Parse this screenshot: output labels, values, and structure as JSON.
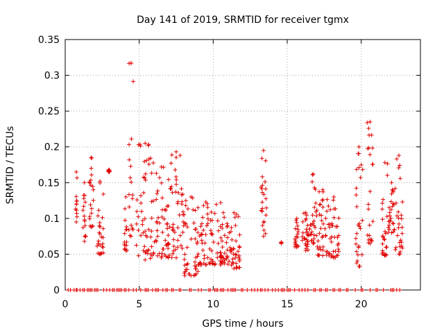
{
  "chart_data": {
    "type": "scatter",
    "title": "Day 141 of 2019, SRMTID for receiver tgmx",
    "xlabel": "GPS time / hours",
    "ylabel": "SRMTID / TECUs",
    "xlim": [
      0,
      24
    ],
    "ylim": [
      0,
      0.35
    ],
    "x_ticks": [
      0,
      5,
      10,
      15,
      20
    ],
    "y_ticks": [
      0,
      0.05,
      0.1,
      0.15,
      0.2,
      0.25,
      0.3,
      0.35
    ],
    "grid": true,
    "marker": "plus",
    "series_color": "#e00000",
    "series": [
      {
        "name": "SRMTID",
        "clusters": [
          {
            "x_from": 0.7,
            "x_to": 0.8,
            "y_min": 0.095,
            "y_max": 0.165
          },
          {
            "x_from": 1.2,
            "x_to": 1.4,
            "y_min": 0.068,
            "y_max": 0.15
          },
          {
            "x_from": 1.6,
            "x_to": 1.9,
            "y_min": 0.088,
            "y_max": 0.185
          },
          {
            "x_from": 2.1,
            "x_to": 2.6,
            "y_min": 0.05,
            "y_max": 0.152
          },
          {
            "x_from": 2.9,
            "x_to": 3.0,
            "y_min": 0.165,
            "y_max": 0.168
          },
          {
            "x_from": 4.0,
            "x_to": 4.2,
            "y_min": 0.055,
            "y_max": 0.13
          },
          {
            "x_from": 4.3,
            "x_to": 4.6,
            "y_min": 0.075,
            "y_max": 0.317
          },
          {
            "x_from": 4.8,
            "x_to": 6.0,
            "y_min": 0.042,
            "y_max": 0.205
          },
          {
            "x_from": 6.0,
            "x_to": 7.0,
            "y_min": 0.045,
            "y_max": 0.172
          },
          {
            "x_from": 7.0,
            "x_to": 8.0,
            "y_min": 0.045,
            "y_max": 0.193
          },
          {
            "x_from": 8.0,
            "x_to": 9.0,
            "y_min": 0.02,
            "y_max": 0.13
          },
          {
            "x_from": 9.0,
            "x_to": 10.0,
            "y_min": 0.035,
            "y_max": 0.123
          },
          {
            "x_from": 10.0,
            "x_to": 11.0,
            "y_min": 0.035,
            "y_max": 0.122
          },
          {
            "x_from": 11.0,
            "x_to": 11.8,
            "y_min": 0.03,
            "y_max": 0.108
          },
          {
            "x_from": 13.2,
            "x_to": 13.6,
            "y_min": 0.075,
            "y_max": 0.195
          },
          {
            "x_from": 14.6,
            "x_to": 14.6,
            "y_min": 0.065,
            "y_max": 0.067
          },
          {
            "x_from": 15.5,
            "x_to": 15.8,
            "y_min": 0.06,
            "y_max": 0.1
          },
          {
            "x_from": 16.0,
            "x_to": 16.5,
            "y_min": 0.055,
            "y_max": 0.108
          },
          {
            "x_from": 16.5,
            "x_to": 17.0,
            "y_min": 0.065,
            "y_max": 0.162
          },
          {
            "x_from": 17.0,
            "x_to": 17.8,
            "y_min": 0.048,
            "y_max": 0.14
          },
          {
            "x_from": 17.8,
            "x_to": 18.5,
            "y_min": 0.045,
            "y_max": 0.13
          },
          {
            "x_from": 19.6,
            "x_to": 20.1,
            "y_min": 0.033,
            "y_max": 0.2
          },
          {
            "x_from": 20.4,
            "x_to": 20.8,
            "y_min": 0.065,
            "y_max": 0.235
          },
          {
            "x_from": 21.4,
            "x_to": 21.8,
            "y_min": 0.048,
            "y_max": 0.178
          },
          {
            "x_from": 21.8,
            "x_to": 22.3,
            "y_min": 0.08,
            "y_max": 0.15
          },
          {
            "x_from": 22.3,
            "x_to": 22.8,
            "y_min": 0.05,
            "y_max": 0.188
          }
        ],
        "zero_points_x": [
          0.2,
          0.35,
          0.6,
          0.75,
          0.8,
          1.0,
          1.2,
          1.3,
          1.5,
          1.6,
          1.7,
          1.8,
          2.0,
          2.1,
          2.2,
          2.6,
          2.8,
          3.0,
          3.2,
          3.3,
          3.5,
          3.6,
          3.7,
          3.8,
          4.0,
          4.1,
          4.3,
          4.6,
          4.8,
          5.1,
          5.4,
          5.5,
          5.6,
          5.9,
          6.1,
          6.2,
          6.3,
          6.6,
          6.8,
          6.9,
          7.2,
          7.3,
          7.7,
          7.8,
          8.4,
          8.5,
          9.0,
          9.2,
          9.7,
          9.8,
          10.1,
          10.2,
          10.3,
          10.5,
          10.6,
          10.7,
          11.0,
          11.2,
          11.3,
          11.4,
          11.5,
          11.9,
          12.0,
          12.3,
          12.6,
          12.8,
          13.0,
          13.2,
          13.3,
          13.5,
          13.7,
          14.0,
          14.2,
          14.4,
          14.6,
          14.7,
          14.8,
          15.0,
          15.1,
          15.2,
          15.5,
          15.8,
          16.0,
          16.2,
          16.4,
          16.8,
          16.9,
          17.2,
          17.3,
          17.6,
          17.7,
          18.1,
          18.2,
          18.5,
          18.6,
          19.0,
          19.1,
          19.6,
          20.0,
          20.1,
          20.6,
          21.0,
          21.1,
          21.5,
          22.0,
          22.1,
          22.2,
          22.4,
          22.6
        ]
      }
    ]
  }
}
